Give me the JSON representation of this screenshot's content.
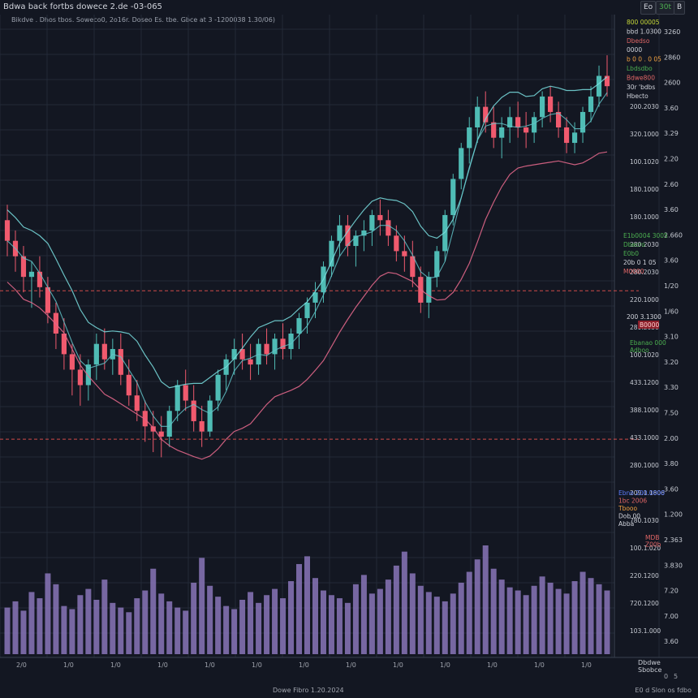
{
  "header": {
    "title": "Bdwa back fortbs dowece 2.de -03-065",
    "subtitle": "Bikdve . Dhos  tbos.   Soweco0,  2o16r.  Doseo  Es. tbe.  Gbce at 3 -1200038 1.30/06)",
    "btn_a": "Eo",
    "btn_b": "30t",
    "btn_c": "B"
  },
  "axis": {
    "right_ticks": [
      "3260",
      "2860",
      "2600",
      "3.60",
      "3.29",
      "2.20",
      "2.60",
      "3.60",
      "2.660",
      "3.60",
      "1/20",
      "1/60",
      "3.10",
      "3.20",
      "3.30",
      "7.50",
      "2.00",
      "3.80",
      "3.60",
      "1.200",
      "2.363",
      "3.830",
      "7.20",
      "7.00",
      "3.60"
    ],
    "price_labels": [
      "200.2030",
      "320.1000",
      "100.1020",
      "180.1000",
      "180.1000",
      "280.2030",
      "280.2030",
      "220.1000",
      "280.2030",
      "100.1020",
      "433.1200",
      "388.1000",
      "433.1000",
      "280.1000",
      "209.1.1806",
      "780.1030",
      "100.1.020",
      "220.1200",
      "720.1200",
      "103.1.000"
    ],
    "x_labels": [
      "2/0",
      "1/0",
      "1/0",
      "1/0",
      "1/0",
      "1/0",
      "1/0",
      "1/0",
      "1/0",
      "1/0",
      "1/0",
      "1/0",
      "1/0"
    ]
  },
  "legend": {
    "top": [
      {
        "text": "800 00005",
        "color": "#c6d838"
      },
      {
        "text": "bbd 1.0300",
        "color": "#d1d4dc"
      },
      {
        "text": "Dbedso",
        "color": "#e06666"
      },
      {
        "text": "0000",
        "color": "#d1d4dc"
      },
      {
        "text": "b 0 0 . 0 05",
        "color": "#f0a040"
      },
      {
        "text": "Lbdsdbo",
        "color": "#4caf50"
      },
      {
        "text": "Bdwe800",
        "color": "#e06666"
      },
      {
        "text": "30r 'bdbs",
        "color": "#d1d4dc"
      },
      {
        "text": "Hbecto",
        "color": "#d1d4dc"
      }
    ],
    "mid": [
      {
        "text": "E1b0004 3005",
        "color": "#4caf50"
      },
      {
        "text": "Dbecro",
        "color": "#4caf50"
      },
      {
        "text": "E0b0",
        "color": "#4caf50"
      },
      {
        "text": "20b 0 1 05",
        "color": "#d1d4dc"
      },
      {
        "text": "M0000",
        "color": "#e06666"
      }
    ],
    "price_tag": {
      "text": "200 3.1300",
      "color": "#d1d4dc"
    },
    "red_tag": {
      "text": "B0000",
      "color": "#ef5350"
    },
    "lower": [
      {
        "text": "Ebanao 000",
        "color": "#4caf50"
      },
      {
        "text": "Adboo",
        "color": "#4caf50"
      }
    ],
    "low2": [
      {
        "text": "Ebno 200.0000",
        "color": "#5c7cfa"
      },
      {
        "text": "1bc 2006",
        "color": "#e06666"
      },
      {
        "text": "Tbooo",
        "color": "#f0a040"
      },
      {
        "text": "Dob 00",
        "color": "#d1d4dc"
      },
      {
        "text": "Abba",
        "color": "#d1d4dc"
      }
    ],
    "low3": [
      {
        "text": "MDB",
        "color": "#e06666"
      },
      {
        "text": "Z00b",
        "color": "#e06666"
      }
    ]
  },
  "footer": {
    "center": "Dowe  Fibro  1.20.2024",
    "right": "E0  d  Slon  os  fdbo",
    "corner_line1": "Dbdwe",
    "corner_line2": "Sbobce",
    "corner_btn_a": "0",
    "corner_btn_b": "5"
  },
  "colors": {
    "background": "#131722",
    "grid": "#232a37",
    "bull": "#4fbcb5",
    "bear": "#f05a6e",
    "ma_fast": "#7adfe0",
    "ma_mid": "#62c3c8",
    "ma_slow": "#e06688",
    "volume": "#8a76b8",
    "h_line": "#ef5350"
  },
  "chart_data": {
    "type": "candlestick",
    "title": "Bdwa back fortbs dowece 2.de -03-065",
    "ylim": [
      0,
      100
    ],
    "grid": true,
    "candles": [
      [
        62,
        65,
        55,
        58
      ],
      [
        58,
        60,
        52,
        55
      ],
      [
        55,
        57,
        48,
        51
      ],
      [
        51,
        54,
        45,
        52
      ],
      [
        52,
        55,
        47,
        49
      ],
      [
        49,
        51,
        42,
        44
      ],
      [
        44,
        46,
        37,
        40
      ],
      [
        40,
        43,
        33,
        36
      ],
      [
        36,
        38,
        28,
        33
      ],
      [
        33,
        36,
        26,
        30
      ],
      [
        30,
        35,
        27,
        34
      ],
      [
        34,
        40,
        31,
        38
      ],
      [
        38,
        41,
        33,
        35
      ],
      [
        35,
        39,
        32,
        37
      ],
      [
        37,
        40,
        30,
        32
      ],
      [
        32,
        35,
        26,
        28
      ],
      [
        28,
        31,
        23,
        25
      ],
      [
        25,
        27,
        19,
        22
      ],
      [
        22,
        25,
        17,
        21
      ],
      [
        21,
        24,
        16,
        20
      ],
      [
        20,
        26,
        18,
        25
      ],
      [
        25,
        31,
        23,
        30
      ],
      [
        30,
        33,
        25,
        27
      ],
      [
        27,
        30,
        21,
        23
      ],
      [
        23,
        26,
        18,
        21
      ],
      [
        21,
        28,
        20,
        27
      ],
      [
        27,
        33,
        25,
        32
      ],
      [
        32,
        36,
        29,
        35
      ],
      [
        35,
        39,
        32,
        37
      ],
      [
        37,
        40,
        33,
        35
      ],
      [
        35,
        38,
        31,
        34
      ],
      [
        34,
        39,
        32,
        38
      ],
      [
        38,
        41,
        34,
        36
      ],
      [
        36,
        40,
        33,
        39
      ],
      [
        39,
        42,
        35,
        37
      ],
      [
        37,
        41,
        35,
        40
      ],
      [
        40,
        44,
        37,
        43
      ],
      [
        43,
        47,
        40,
        46
      ],
      [
        46,
        50,
        43,
        48
      ],
      [
        48,
        54,
        46,
        53
      ],
      [
        53,
        59,
        51,
        58
      ],
      [
        58,
        63,
        55,
        61
      ],
      [
        61,
        63,
        55,
        57
      ],
      [
        57,
        60,
        53,
        59
      ],
      [
        59,
        62,
        56,
        60
      ],
      [
        60,
        64,
        57,
        63
      ],
      [
        63,
        66,
        59,
        62
      ],
      [
        62,
        64,
        57,
        59
      ],
      [
        59,
        61,
        54,
        56
      ],
      [
        56,
        59,
        52,
        55
      ],
      [
        55,
        58,
        49,
        51
      ],
      [
        51,
        53,
        44,
        46
      ],
      [
        46,
        52,
        43,
        51
      ],
      [
        51,
        57,
        49,
        56
      ],
      [
        56,
        64,
        54,
        63
      ],
      [
        63,
        71,
        61,
        70
      ],
      [
        70,
        77,
        68,
        76
      ],
      [
        76,
        82,
        73,
        80
      ],
      [
        80,
        86,
        77,
        84
      ],
      [
        84,
        87,
        79,
        81
      ],
      [
        81,
        84,
        76,
        78
      ],
      [
        78,
        82,
        74,
        80
      ],
      [
        80,
        84,
        77,
        82
      ],
      [
        82,
        85,
        78,
        80
      ],
      [
        80,
        83,
        76,
        79
      ],
      [
        79,
        83,
        77,
        82
      ],
      [
        82,
        87,
        80,
        86
      ],
      [
        86,
        88,
        81,
        83
      ],
      [
        83,
        85,
        78,
        80
      ],
      [
        80,
        82,
        75,
        77
      ],
      [
        77,
        81,
        75,
        79
      ],
      [
        79,
        84,
        77,
        83
      ],
      [
        83,
        88,
        81,
        86
      ],
      [
        86,
        92,
        84,
        90
      ],
      [
        90,
        94,
        86,
        88
      ]
    ],
    "volume": [
      30,
      34,
      28,
      40,
      36,
      52,
      45,
      31,
      29,
      38,
      42,
      35,
      48,
      33,
      30,
      27,
      36,
      41,
      55,
      39,
      34,
      30,
      28,
      46,
      62,
      44,
      37,
      31,
      29,
      35,
      40,
      33,
      38,
      42,
      36,
      47,
      58,
      63,
      49,
      41,
      38,
      36,
      33,
      45,
      51,
      39,
      42,
      48,
      57,
      66,
      52,
      44,
      40,
      37,
      34,
      39,
      46,
      53,
      61,
      70,
      55,
      48,
      43,
      41,
      38,
      44,
      50,
      46,
      42,
      39,
      47,
      53,
      49,
      45,
      41
    ],
    "hlines": [
      48.3,
      19.5
    ]
  }
}
